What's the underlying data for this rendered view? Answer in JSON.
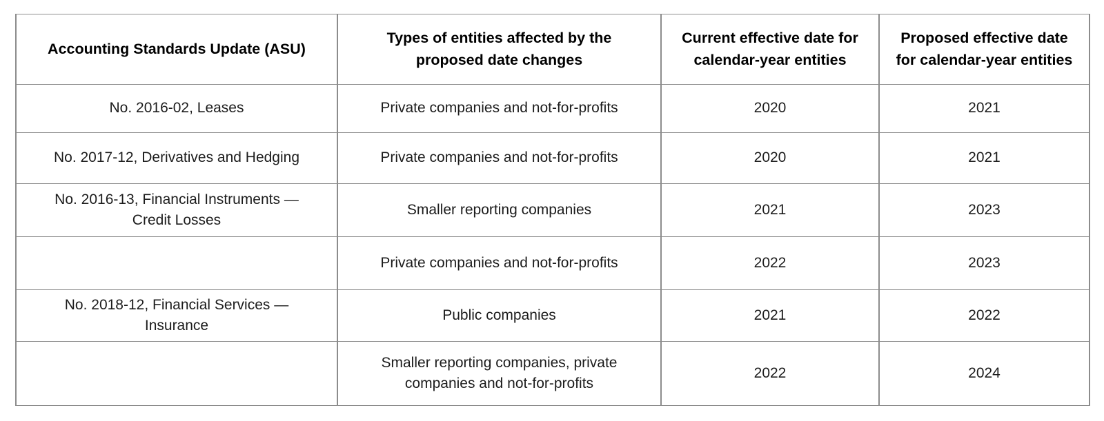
{
  "table": {
    "headers": {
      "asu": "Accounting Standards Update (ASU)",
      "entities": "Types of entities affected by the\nproposed date changes",
      "current_date": "Current effective date for\ncalendar-year entities",
      "proposed_date": "Proposed effective date\nfor calendar-year entities"
    },
    "rows": [
      {
        "asu": "No. 2016-02, Leases",
        "entities": "Private companies and not-for-profits",
        "current_date": "2020",
        "proposed_date": "2021"
      },
      {
        "asu": "No. 2017-12, Derivatives and Hedging",
        "entities": "Private companies and not-for-profits",
        "current_date": "2020",
        "proposed_date": "2021"
      },
      {
        "asu": "No. 2016-13, Financial Instruments —\nCredit Losses",
        "entities": "Smaller reporting companies",
        "current_date": "2021",
        "proposed_date": "2023"
      },
      {
        "asu": "",
        "entities": "Private companies and not-for-profits",
        "current_date": "2022",
        "proposed_date": "2023"
      },
      {
        "asu": "No. 2018-12, Financial Services —\nInsurance",
        "entities": "Public companies",
        "current_date": "2021",
        "proposed_date": "2022"
      },
      {
        "asu": "",
        "entities": "Smaller reporting companies, private\ncompanies and not-for-profits",
        "current_date": "2022",
        "proposed_date": "2024"
      }
    ]
  },
  "colors": {
    "border": "#8c8c8c",
    "text": "#1c1c1c",
    "header_text": "#000000",
    "background": "#ffffff"
  }
}
